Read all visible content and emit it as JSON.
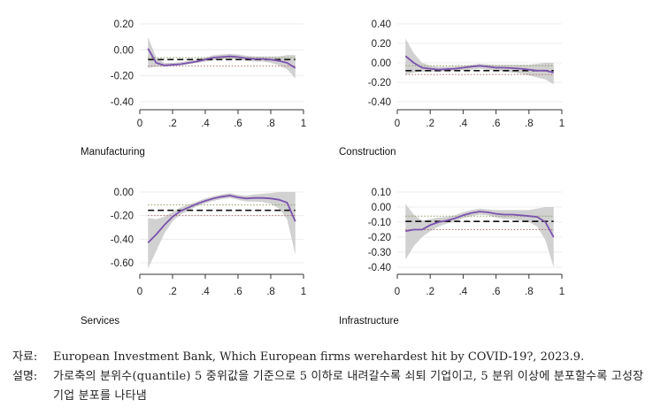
{
  "chart_data": [
    {
      "type": "line",
      "title": "Manufacturing",
      "xlim": [
        0,
        1
      ],
      "ylim": [
        -0.4,
        0.2
      ],
      "x_ticks": [
        "0",
        ".2",
        ".4",
        ".6",
        ".8",
        "1"
      ],
      "y_ticks": [
        "0.20",
        "0.00",
        "-0.20",
        "-0.40"
      ],
      "x_tick_values": [
        0,
        0.2,
        0.4,
        0.6,
        0.8,
        1
      ],
      "y_tick_values": [
        0.2,
        0,
        -0.2,
        -0.4
      ],
      "x": [
        0.05,
        0.1,
        0.15,
        0.2,
        0.25,
        0.3,
        0.35,
        0.4,
        0.45,
        0.5,
        0.55,
        0.6,
        0.65,
        0.7,
        0.75,
        0.8,
        0.85,
        0.9,
        0.95
      ],
      "series": [
        {
          "values": [
            0.01,
            -0.1,
            -0.12,
            -0.115,
            -0.11,
            -0.1,
            -0.09,
            -0.075,
            -0.06,
            -0.055,
            -0.05,
            -0.055,
            -0.065,
            -0.07,
            -0.07,
            -0.075,
            -0.085,
            -0.1,
            -0.14
          ],
          "lower": [
            -0.14,
            -0.13,
            -0.13,
            -0.125,
            -0.12,
            -0.11,
            -0.1,
            -0.09,
            -0.08,
            -0.075,
            -0.07,
            -0.075,
            -0.085,
            -0.09,
            -0.09,
            -0.1,
            -0.12,
            -0.15,
            -0.22
          ],
          "upper": [
            0.1,
            -0.06,
            -0.1,
            -0.1,
            -0.095,
            -0.085,
            -0.075,
            -0.06,
            -0.04,
            -0.035,
            -0.03,
            -0.035,
            -0.045,
            -0.05,
            -0.05,
            -0.05,
            -0.05,
            -0.04,
            -0.04
          ]
        }
      ],
      "reference_lines": {
        "dashed": -0.075,
        "dotted_upper": -0.06,
        "dotted_lower": -0.125
      }
    },
    {
      "type": "line",
      "title": "Construction",
      "xlim": [
        0,
        1
      ],
      "ylim": [
        -0.4,
        0.4
      ],
      "x_ticks": [
        "0",
        ".2",
        ".4",
        ".6",
        ".8",
        "1"
      ],
      "y_ticks": [
        "0.40",
        "0.20",
        "0.00",
        "-0.20",
        "-0.40"
      ],
      "x_tick_values": [
        0,
        0.2,
        0.4,
        0.6,
        0.8,
        1
      ],
      "y_tick_values": [
        0.4,
        0.2,
        0,
        -0.2,
        -0.4
      ],
      "x": [
        0.05,
        0.1,
        0.15,
        0.2,
        0.25,
        0.3,
        0.35,
        0.4,
        0.45,
        0.5,
        0.55,
        0.6,
        0.65,
        0.7,
        0.75,
        0.8,
        0.85,
        0.9,
        0.95
      ],
      "series": [
        {
          "values": [
            0.07,
            0.0,
            -0.05,
            -0.06,
            -0.07,
            -0.065,
            -0.06,
            -0.05,
            -0.04,
            -0.03,
            -0.04,
            -0.05,
            -0.05,
            -0.055,
            -0.06,
            -0.07,
            -0.08,
            -0.08,
            -0.1
          ],
          "lower": [
            -0.12,
            -0.1,
            -0.09,
            -0.09,
            -0.09,
            -0.085,
            -0.08,
            -0.075,
            -0.07,
            -0.06,
            -0.07,
            -0.08,
            -0.09,
            -0.1,
            -0.11,
            -0.13,
            -0.15,
            -0.17,
            -0.22
          ],
          "upper": [
            0.25,
            0.1,
            0.0,
            -0.03,
            -0.04,
            -0.04,
            -0.035,
            -0.03,
            -0.02,
            -0.01,
            -0.015,
            -0.02,
            -0.02,
            -0.02,
            -0.02,
            -0.02,
            -0.01,
            0.0,
            0.0
          ]
        }
      ],
      "reference_lines": {
        "dashed": -0.08,
        "dotted_upper": -0.03,
        "dotted_lower": -0.12
      }
    },
    {
      "type": "line",
      "title": "Services",
      "xlim": [
        0,
        1
      ],
      "ylim": [
        -0.6,
        0.0
      ],
      "x_ticks": [
        "0",
        ".2",
        ".4",
        ".6",
        ".8",
        "1"
      ],
      "y_ticks": [
        "0.00",
        "-0.20",
        "-0.40",
        "-0.60"
      ],
      "x_tick_values": [
        0,
        0.2,
        0.4,
        0.6,
        0.8,
        1
      ],
      "y_tick_values": [
        0,
        -0.2,
        -0.4,
        -0.6
      ],
      "x": [
        0.05,
        0.1,
        0.15,
        0.2,
        0.25,
        0.3,
        0.35,
        0.4,
        0.45,
        0.5,
        0.55,
        0.6,
        0.65,
        0.7,
        0.75,
        0.8,
        0.85,
        0.9,
        0.95
      ],
      "series": [
        {
          "values": [
            -0.43,
            -0.36,
            -0.28,
            -0.21,
            -0.16,
            -0.13,
            -0.1,
            -0.075,
            -0.055,
            -0.04,
            -0.03,
            -0.045,
            -0.055,
            -0.05,
            -0.05,
            -0.055,
            -0.065,
            -0.09,
            -0.25
          ],
          "lower": [
            -0.65,
            -0.5,
            -0.35,
            -0.25,
            -0.19,
            -0.155,
            -0.12,
            -0.095,
            -0.075,
            -0.06,
            -0.05,
            -0.065,
            -0.08,
            -0.08,
            -0.085,
            -0.1,
            -0.14,
            -0.23,
            -0.53
          ],
          "upper": [
            -0.22,
            -0.23,
            -0.21,
            -0.17,
            -0.13,
            -0.105,
            -0.08,
            -0.055,
            -0.035,
            -0.02,
            -0.01,
            -0.025,
            -0.03,
            -0.02,
            -0.015,
            -0.01,
            0.0,
            0.0,
            0.0
          ]
        }
      ],
      "reference_lines": {
        "dashed": -0.155,
        "dotted_upper": -0.11,
        "dotted_lower": -0.2
      }
    },
    {
      "type": "line",
      "title": "Infrastructure",
      "xlim": [
        0,
        1
      ],
      "ylim": [
        -0.4,
        0.1
      ],
      "x_ticks": [
        "0",
        ".2",
        ".4",
        ".6",
        ".8",
        "1"
      ],
      "y_ticks": [
        "0.10",
        "0.00",
        "-0.10",
        "-0.20",
        "-0.30",
        "-0.40"
      ],
      "x_tick_values": [
        0,
        0.2,
        0.4,
        0.6,
        0.8,
        1
      ],
      "y_tick_values": [
        0.1,
        0,
        -0.1,
        -0.2,
        -0.3,
        -0.4
      ],
      "x": [
        0.05,
        0.1,
        0.15,
        0.2,
        0.25,
        0.3,
        0.35,
        0.4,
        0.45,
        0.5,
        0.55,
        0.6,
        0.65,
        0.7,
        0.75,
        0.8,
        0.85,
        0.9,
        0.95
      ],
      "series": [
        {
          "values": [
            -0.16,
            -0.15,
            -0.15,
            -0.12,
            -0.1,
            -0.09,
            -0.075,
            -0.055,
            -0.04,
            -0.03,
            -0.035,
            -0.045,
            -0.05,
            -0.05,
            -0.055,
            -0.06,
            -0.065,
            -0.1,
            -0.2
          ],
          "lower": [
            -0.35,
            -0.26,
            -0.2,
            -0.16,
            -0.13,
            -0.11,
            -0.095,
            -0.075,
            -0.06,
            -0.05,
            -0.055,
            -0.07,
            -0.08,
            -0.08,
            -0.09,
            -0.1,
            -0.13,
            -0.22,
            -0.4
          ],
          "upper": [
            0.02,
            -0.05,
            -0.09,
            -0.08,
            -0.07,
            -0.065,
            -0.055,
            -0.035,
            -0.02,
            -0.01,
            -0.015,
            -0.02,
            -0.02,
            -0.02,
            -0.02,
            -0.02,
            -0.01,
            0.0,
            0.0
          ]
        }
      ],
      "reference_lines": {
        "dashed": -0.095,
        "dotted_upper": -0.06,
        "dotted_lower": -0.15
      }
    }
  ],
  "colors": {
    "estimate_line": "#7b52ae",
    "confidence_band": "#c9c9c9",
    "dashed_line": "#111111",
    "dotted_upper": "#8a9a5b",
    "dotted_lower": "#b07070"
  },
  "notes": {
    "source_label": "자료:",
    "source_text": "European Investment Bank, Which European firms werehardest hit by COVID-19?, 2023.9.",
    "desc_label": "설명:",
    "desc_text": "가로축의 분위수(quantile) 5 중위값을 기준으로 5 이하로 내려갈수록 쇠퇴 기업이고, 5 분위 이상에 분포할수록 고성장 기업 분포를 나타냄"
  }
}
